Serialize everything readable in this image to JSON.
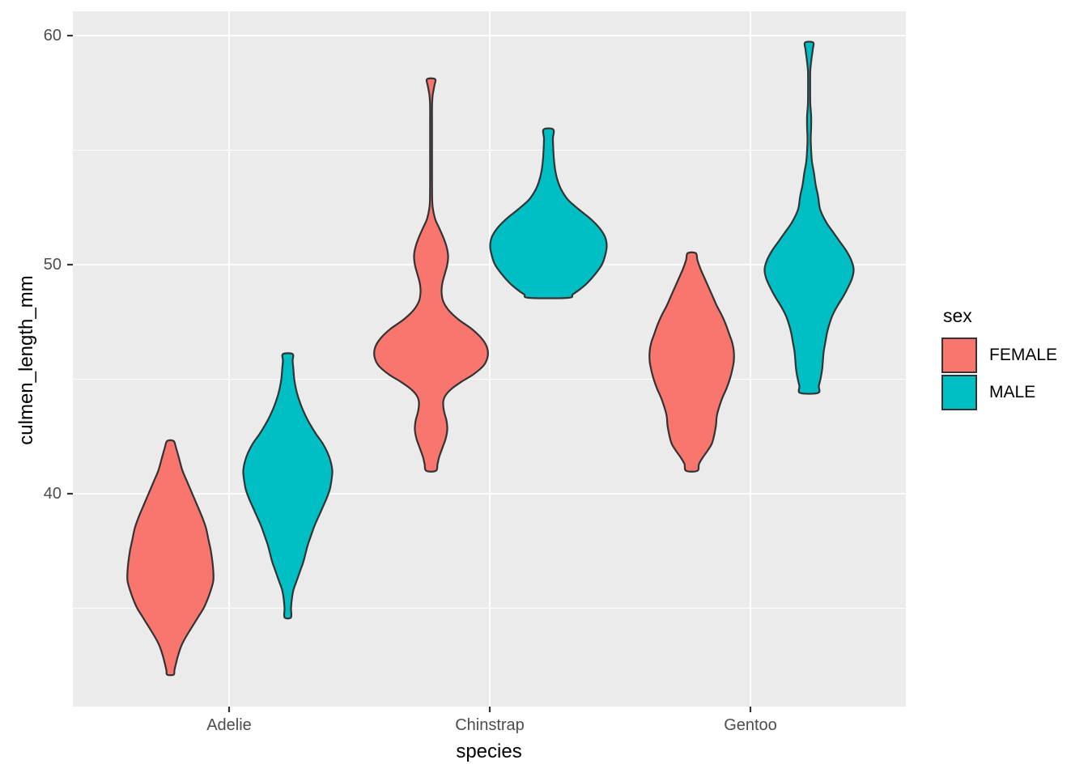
{
  "chart_data": {
    "type": "violin",
    "title": "",
    "xlabel": "species",
    "ylabel": "culmen_length_mm",
    "categories": [
      "Adelie",
      "Chinstrap",
      "Gentoo"
    ],
    "y_axis": {
      "ticks": [
        60,
        50,
        40
      ],
      "tick_labels": [
        "60",
        "50",
        "40"
      ],
      "minor_ticks": [
        55,
        45,
        35
      ],
      "range_shown": [
        30.7,
        61.1
      ]
    },
    "legend": {
      "title": "sex",
      "entries": [
        {
          "label": "FEMALE",
          "color": "#F8766D"
        },
        {
          "label": "MALE",
          "color": "#00BFC4"
        }
      ]
    },
    "colors": {
      "female_fill": "#F8766D",
      "male_fill": "#00BFC4",
      "outline": "#333333",
      "panel_background": "#EBEBEB",
      "gridline": "#FFFFFF",
      "tick_text": "#4d4d4d",
      "axis_title_text": "#000000"
    },
    "series": [
      {
        "name": "FEMALE",
        "color": "#F8766D",
        "violins": [
          {
            "category": "Adelie",
            "min": 32.1,
            "max": 42.3,
            "profile": [
              [
                42.3,
                4
              ],
              [
                42.0,
                7
              ],
              [
                41.5,
                11
              ],
              [
                41.0,
                15
              ],
              [
                40.5,
                21
              ],
              [
                40.0,
                27
              ],
              [
                39.5,
                33
              ],
              [
                39.0,
                39
              ],
              [
                38.5,
                44
              ],
              [
                38.0,
                47
              ],
              [
                37.5,
                50
              ],
              [
                37.0,
                52
              ],
              [
                36.6,
                53
              ],
              [
                36.2,
                53
              ],
              [
                35.8,
                50
              ],
              [
                35.4,
                46
              ],
              [
                35.0,
                41
              ],
              [
                34.6,
                34
              ],
              [
                34.2,
                27
              ],
              [
                33.8,
                20
              ],
              [
                33.4,
                14
              ],
              [
                33.0,
                10
              ],
              [
                32.6,
                7
              ],
              [
                32.3,
                5
              ],
              [
                32.1,
                4
              ]
            ]
          },
          {
            "category": "Chinstrap",
            "min": 41.0,
            "max": 58.1,
            "profile": [
              [
                58.1,
                5
              ],
              [
                57.8,
                4
              ],
              [
                57.4,
                2
              ],
              [
                56.9,
                1.2
              ],
              [
                56.0,
                1.2
              ],
              [
                55.0,
                1.2
              ],
              [
                54.0,
                1.2
              ],
              [
                53.0,
                1.3
              ],
              [
                52.5,
                2
              ],
              [
                52.0,
                5
              ],
              [
                51.6,
                10
              ],
              [
                51.2,
                15
              ],
              [
                50.8,
                19
              ],
              [
                50.4,
                21
              ],
              [
                50.0,
                20
              ],
              [
                49.6,
                17
              ],
              [
                49.2,
                14
              ],
              [
                48.8,
                13
              ],
              [
                48.4,
                15
              ],
              [
                48.0,
                22
              ],
              [
                47.6,
                34
              ],
              [
                47.2,
                50
              ],
              [
                46.8,
                62
              ],
              [
                46.4,
                69
              ],
              [
                46.0,
                70
              ],
              [
                45.6,
                65
              ],
              [
                45.2,
                52
              ],
              [
                44.9,
                38
              ],
              [
                44.6,
                26
              ],
              [
                44.3,
                18
              ],
              [
                44.0,
                15
              ],
              [
                43.6,
                16
              ],
              [
                43.2,
                19
              ],
              [
                42.8,
                20
              ],
              [
                42.4,
                18
              ],
              [
                42.0,
                14
              ],
              [
                41.6,
                10
              ],
              [
                41.3,
                8
              ],
              [
                41.0,
                6
              ]
            ]
          },
          {
            "category": "Gentoo",
            "min": 41.0,
            "max": 50.5,
            "profile": [
              [
                50.5,
                5
              ],
              [
                50.2,
                7
              ],
              [
                49.8,
                11
              ],
              [
                49.4,
                16
              ],
              [
                49.0,
                21
              ],
              [
                48.6,
                26
              ],
              [
                48.2,
                31
              ],
              [
                47.8,
                37
              ],
              [
                47.4,
                42
              ],
              [
                47.0,
                46
              ],
              [
                46.6,
                50
              ],
              [
                46.2,
                52
              ],
              [
                45.8,
                52
              ],
              [
                45.4,
                50
              ],
              [
                45.0,
                47
              ],
              [
                44.6,
                43
              ],
              [
                44.2,
                38
              ],
              [
                43.8,
                34
              ],
              [
                43.4,
                31
              ],
              [
                43.0,
                30
              ],
              [
                42.6,
                28
              ],
              [
                42.2,
                25
              ],
              [
                41.9,
                20
              ],
              [
                41.6,
                14
              ],
              [
                41.3,
                9
              ],
              [
                41.0,
                7
              ]
            ]
          }
        ]
      },
      {
        "name": "MALE",
        "color": "#00BFC4",
        "violins": [
          {
            "category": "Adelie",
            "min": 34.6,
            "max": 46.1,
            "profile": [
              [
                46.1,
                6
              ],
              [
                45.8,
                6
              ],
              [
                45.4,
                7
              ],
              [
                45.0,
                8
              ],
              [
                44.6,
                10
              ],
              [
                44.2,
                13
              ],
              [
                43.8,
                17
              ],
              [
                43.4,
                22
              ],
              [
                43.0,
                28
              ],
              [
                42.6,
                35
              ],
              [
                42.2,
                43
              ],
              [
                41.8,
                49
              ],
              [
                41.4,
                53
              ],
              [
                41.0,
                55
              ],
              [
                40.6,
                54
              ],
              [
                40.2,
                52
              ],
              [
                39.8,
                48
              ],
              [
                39.4,
                43
              ],
              [
                39.0,
                38
              ],
              [
                38.6,
                33
              ],
              [
                38.2,
                29
              ],
              [
                37.8,
                25
              ],
              [
                37.4,
                22
              ],
              [
                37.0,
                19
              ],
              [
                36.6,
                15
              ],
              [
                36.2,
                11
              ],
              [
                35.8,
                7
              ],
              [
                35.4,
                5
              ],
              [
                35.0,
                4
              ],
              [
                34.6,
                4
              ]
            ]
          },
          {
            "category": "Chinstrap",
            "min": 48.5,
            "max": 55.9,
            "profile": [
              [
                55.9,
                6
              ],
              [
                55.5,
                5.5
              ],
              [
                55.0,
                6
              ],
              [
                54.5,
                7
              ],
              [
                54.0,
                9
              ],
              [
                53.6,
                12
              ],
              [
                53.2,
                17
              ],
              [
                52.8,
                25
              ],
              [
                52.4,
                38
              ],
              [
                52.0,
                52
              ],
              [
                51.6,
                63
              ],
              [
                51.2,
                70
              ],
              [
                50.8,
                72
              ],
              [
                50.4,
                70
              ],
              [
                50.0,
                66
              ],
              [
                49.6,
                58
              ],
              [
                49.2,
                48
              ],
              [
                48.9,
                38
              ],
              [
                48.7,
                30
              ],
              [
                48.55,
                24
              ]
            ]
          },
          {
            "category": "Gentoo",
            "min": 44.4,
            "max": 59.7,
            "profile": [
              [
                59.7,
                5
              ],
              [
                59.4,
                4.5
              ],
              [
                59.0,
                3
              ],
              [
                58.5,
                1.5
              ],
              [
                58.0,
                1.3
              ],
              [
                57.5,
                1.3
              ],
              [
                57.0,
                1.5
              ],
              [
                56.5,
                2.5
              ],
              [
                56.0,
                2.5
              ],
              [
                55.5,
                2
              ],
              [
                55.0,
                2.5
              ],
              [
                54.5,
                3.5
              ],
              [
                54.0,
                6
              ],
              [
                53.5,
                8
              ],
              [
                53.0,
                11
              ],
              [
                52.5,
                13
              ],
              [
                52.2,
                16
              ],
              [
                51.8,
                22
              ],
              [
                51.4,
                30
              ],
              [
                51.0,
                38
              ],
              [
                50.6,
                46
              ],
              [
                50.2,
                52
              ],
              [
                49.8,
                55
              ],
              [
                49.4,
                53
              ],
              [
                49.0,
                48
              ],
              [
                48.6,
                42
              ],
              [
                48.2,
                35
              ],
              [
                47.8,
                29
              ],
              [
                47.4,
                25
              ],
              [
                47.0,
                22
              ],
              [
                46.6,
                20
              ],
              [
                46.2,
                18
              ],
              [
                45.8,
                17
              ],
              [
                45.4,
                16
              ],
              [
                45.0,
                14
              ],
              [
                44.7,
                12
              ],
              [
                44.4,
                11
              ]
            ]
          }
        ]
      }
    ]
  }
}
